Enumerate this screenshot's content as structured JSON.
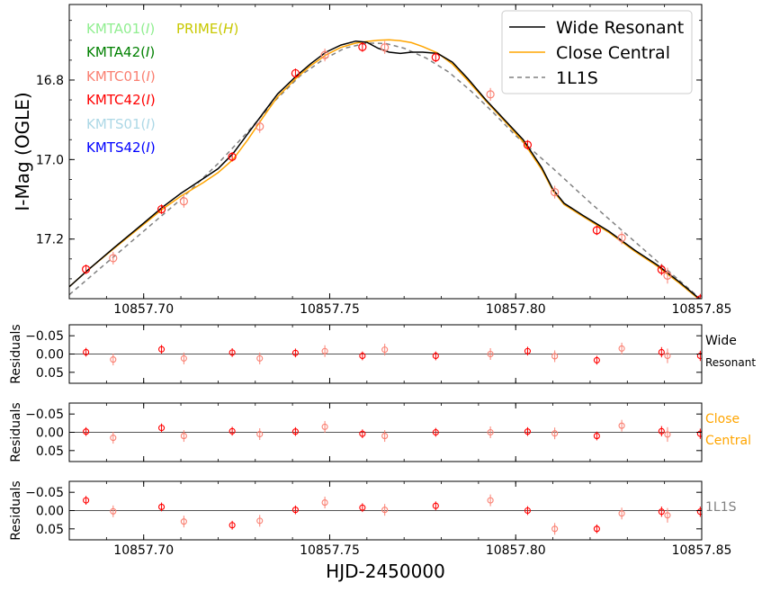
{
  "chart_data": {
    "type": "scatter",
    "x_axis": {
      "label": "HJD-2450000",
      "range": [
        10857.68,
        10857.85
      ],
      "ticks": [
        10857.7,
        10857.75,
        10857.8,
        10857.85
      ],
      "tick_labels": [
        "10857.70",
        "10857.75",
        "10857.80",
        "10857.85"
      ]
    },
    "main_panel": {
      "ylabel": "I-Mag (OGLE)",
      "ylim": [
        17.35,
        16.61
      ],
      "inverted": true,
      "yticks": [
        16.8,
        17.0,
        17.2
      ],
      "ytick_labels": [
        "16.8",
        "17.0",
        "17.2"
      ],
      "dataset_labels": [
        {
          "name": "KMTA01",
          "band": "I",
          "color": "#90ee90"
        },
        {
          "name": "KMTA42",
          "band": "I",
          "color": "#008000"
        },
        {
          "name": "KMTC01",
          "band": "I",
          "color": "#fa8072"
        },
        {
          "name": "KMTC42",
          "band": "I",
          "color": "#ff0000"
        },
        {
          "name": "KMTS01",
          "band": "I",
          "color": "#add8e6"
        },
        {
          "name": "KMTS42",
          "band": "I",
          "color": "#0000ff"
        },
        {
          "name": "PRIME",
          "band": "H",
          "color": "#c8c800"
        }
      ],
      "legend": {
        "placement": "top-right",
        "entries": [
          {
            "label": "Wide Resonant",
            "color": "#000000",
            "style": "solid"
          },
          {
            "label": "Close Central",
            "color": "#ffa500",
            "style": "solid"
          },
          {
            "label": "1L1S",
            "color": "#808080",
            "style": "dashed"
          }
        ]
      },
      "models": [
        {
          "name": "Wide Resonant",
          "color": "#000000",
          "dash": "",
          "x": [
            10857.68,
            10857.685,
            10857.692,
            10857.7,
            10857.705,
            10857.71,
            10857.716,
            10857.72,
            10857.724,
            10857.728,
            10857.732,
            10857.736,
            10857.741,
            10857.745,
            10857.749,
            10857.753,
            10857.757,
            10857.76,
            10857.763,
            10857.766,
            10857.769,
            10857.772,
            10857.775,
            10857.779,
            10857.783,
            10857.787,
            10857.792,
            10857.797,
            10857.802,
            10857.807,
            10857.81,
            10857.813,
            10857.818,
            10857.825,
            10857.832,
            10857.838,
            10857.844,
            10857.85
          ],
          "y": [
            17.32,
            17.278,
            17.222,
            17.16,
            17.12,
            17.085,
            17.048,
            17.023,
            16.985,
            16.935,
            16.885,
            16.835,
            16.79,
            16.758,
            16.73,
            16.712,
            16.702,
            16.705,
            16.72,
            16.73,
            16.733,
            16.73,
            16.73,
            16.733,
            16.755,
            16.795,
            16.85,
            16.9,
            16.95,
            17.02,
            17.075,
            17.11,
            17.14,
            17.18,
            17.228,
            17.265,
            17.308,
            17.355
          ]
        },
        {
          "name": "Close Central",
          "color": "#ffa500",
          "dash": "",
          "x": [
            10857.68,
            10857.685,
            10857.692,
            10857.7,
            10857.705,
            10857.71,
            10857.716,
            10857.72,
            10857.724,
            10857.728,
            10857.732,
            10857.736,
            10857.741,
            10857.745,
            10857.749,
            10857.753,
            10857.757,
            10857.76,
            10857.763,
            10857.766,
            10857.769,
            10857.772,
            10857.775,
            10857.779,
            10857.783,
            10857.787,
            10857.792,
            10857.797,
            10857.802,
            10857.807,
            10857.81,
            10857.813,
            10857.818,
            10857.825,
            10857.832,
            10857.838,
            10857.844,
            10857.85
          ],
          "y": [
            17.32,
            17.278,
            17.224,
            17.163,
            17.125,
            17.092,
            17.058,
            17.033,
            17.0,
            16.95,
            16.895,
            16.842,
            16.795,
            16.763,
            16.737,
            16.718,
            16.707,
            16.703,
            16.7,
            16.699,
            16.701,
            16.706,
            16.716,
            16.732,
            16.76,
            16.8,
            16.853,
            16.903,
            16.955,
            17.025,
            17.078,
            17.113,
            17.143,
            17.183,
            17.231,
            17.268,
            17.311,
            17.357
          ]
        },
        {
          "name": "1L1S",
          "color": "#808080",
          "dash": "5,4",
          "x": [
            10857.68,
            10857.69,
            10857.7,
            10857.71,
            10857.72,
            10857.728,
            10857.735,
            10857.742,
            10857.748,
            10857.754,
            10857.76,
            10857.765,
            10857.77,
            10857.776,
            10857.782,
            10857.788,
            10857.794,
            10857.8,
            10857.81,
            10857.82,
            10857.83,
            10857.84,
            10857.85
          ],
          "y": [
            17.34,
            17.26,
            17.18,
            17.1,
            17.01,
            16.93,
            16.855,
            16.79,
            16.75,
            16.72,
            16.707,
            16.708,
            16.72,
            16.745,
            16.78,
            16.828,
            16.882,
            16.94,
            17.022,
            17.108,
            17.19,
            17.272,
            17.353
          ]
        }
      ],
      "points": [
        {
          "x": 10857.6845,
          "y": 17.276,
          "err": 0.012,
          "color": "#ff0000"
        },
        {
          "x": 10857.6918,
          "y": 17.248,
          "err": 0.016,
          "color": "#fa8072"
        },
        {
          "x": 10857.7048,
          "y": 17.125,
          "err": 0.012,
          "color": "#ff0000"
        },
        {
          "x": 10857.7108,
          "y": 17.105,
          "err": 0.016,
          "color": "#fa8072"
        },
        {
          "x": 10857.7238,
          "y": 16.993,
          "err": 0.012,
          "color": "#ff0000"
        },
        {
          "x": 10857.7312,
          "y": 16.917,
          "err": 0.016,
          "color": "#fa8072"
        },
        {
          "x": 10857.7408,
          "y": 16.783,
          "err": 0.012,
          "color": "#ff0000"
        },
        {
          "x": 10857.7487,
          "y": 16.737,
          "err": 0.016,
          "color": "#fa8072"
        },
        {
          "x": 10857.7588,
          "y": 16.717,
          "err": 0.012,
          "color": "#ff0000"
        },
        {
          "x": 10857.7648,
          "y": 16.718,
          "err": 0.016,
          "color": "#fa8072"
        },
        {
          "x": 10857.7785,
          "y": 16.743,
          "err": 0.012,
          "color": "#ff0000"
        },
        {
          "x": 10857.7932,
          "y": 16.836,
          "err": 0.016,
          "color": "#fa8072"
        },
        {
          "x": 10857.8032,
          "y": 16.963,
          "err": 0.012,
          "color": "#ff0000"
        },
        {
          "x": 10857.8105,
          "y": 17.082,
          "err": 0.016,
          "color": "#fa8072"
        },
        {
          "x": 10857.8218,
          "y": 17.178,
          "err": 0.012,
          "color": "#ff0000"
        },
        {
          "x": 10857.8285,
          "y": 17.197,
          "err": 0.016,
          "color": "#fa8072"
        },
        {
          "x": 10857.8392,
          "y": 17.277,
          "err": 0.014,
          "color": "#ff0000"
        },
        {
          "x": 10857.8408,
          "y": 17.292,
          "err": 0.02,
          "color": "#fa8072"
        },
        {
          "x": 10857.8496,
          "y": 17.352,
          "err": 0.014,
          "color": "#ff0000"
        }
      ]
    },
    "residual_panels": [
      {
        "ylabel": "Residuals",
        "model_label": [
          "Wide",
          "Resonant"
        ],
        "label_color": "#000000",
        "ylim": [
          0.08,
          -0.08
        ],
        "yticks": [
          -0.05,
          0.0,
          0.05
        ],
        "ytick_labels": [
          "−0.05",
          "0.00",
          "0.05"
        ],
        "values": [
          -0.005,
          0.015,
          -0.013,
          0.012,
          -0.004,
          0.012,
          -0.003,
          -0.008,
          0.005,
          -0.012,
          0.005,
          0.0,
          -0.008,
          0.006,
          0.017,
          -0.015,
          -0.005,
          0.005,
          0.005
        ],
        "errors": [
          0.012,
          0.016,
          0.012,
          0.016,
          0.012,
          0.016,
          0.012,
          0.016,
          0.012,
          0.016,
          0.012,
          0.016,
          0.012,
          0.016,
          0.012,
          0.016,
          0.014,
          0.02,
          0.014
        ]
      },
      {
        "ylabel": "Residuals",
        "model_label": [
          "Close",
          "Central"
        ],
        "label_color": "#ffa500",
        "ylim": [
          0.08,
          -0.08
        ],
        "yticks": [
          -0.05,
          0.0,
          0.05
        ],
        "ytick_labels": [
          "−0.05",
          "0.00",
          "0.05"
        ],
        "values": [
          -0.002,
          0.015,
          -0.012,
          0.01,
          -0.003,
          0.005,
          -0.002,
          -0.015,
          0.004,
          0.01,
          0.0,
          0.0,
          -0.002,
          0.003,
          0.01,
          -0.018,
          -0.003,
          0.006,
          0.004
        ],
        "errors": [
          0.012,
          0.016,
          0.012,
          0.016,
          0.012,
          0.016,
          0.012,
          0.016,
          0.012,
          0.016,
          0.012,
          0.016,
          0.012,
          0.016,
          0.012,
          0.016,
          0.014,
          0.02,
          0.014
        ]
      },
      {
        "ylabel": "Residuals",
        "model_label": [
          "1L1S"
        ],
        "label_color": "#808080",
        "ylim": [
          0.08,
          -0.08
        ],
        "yticks": [
          -0.05,
          0.0,
          0.05
        ],
        "ytick_labels": [
          "−0.05",
          "0.00",
          "0.05"
        ],
        "values": [
          -0.028,
          0.002,
          -0.01,
          0.03,
          0.04,
          0.028,
          -0.002,
          -0.022,
          -0.008,
          -0.002,
          -0.013,
          -0.028,
          0.0,
          0.05,
          0.05,
          0.008,
          0.003,
          0.013,
          0.003
        ],
        "errors": [
          0.012,
          0.016,
          0.012,
          0.016,
          0.012,
          0.016,
          0.012,
          0.016,
          0.012,
          0.016,
          0.012,
          0.016,
          0.012,
          0.016,
          0.012,
          0.016,
          0.014,
          0.02,
          0.014
        ]
      }
    ]
  }
}
